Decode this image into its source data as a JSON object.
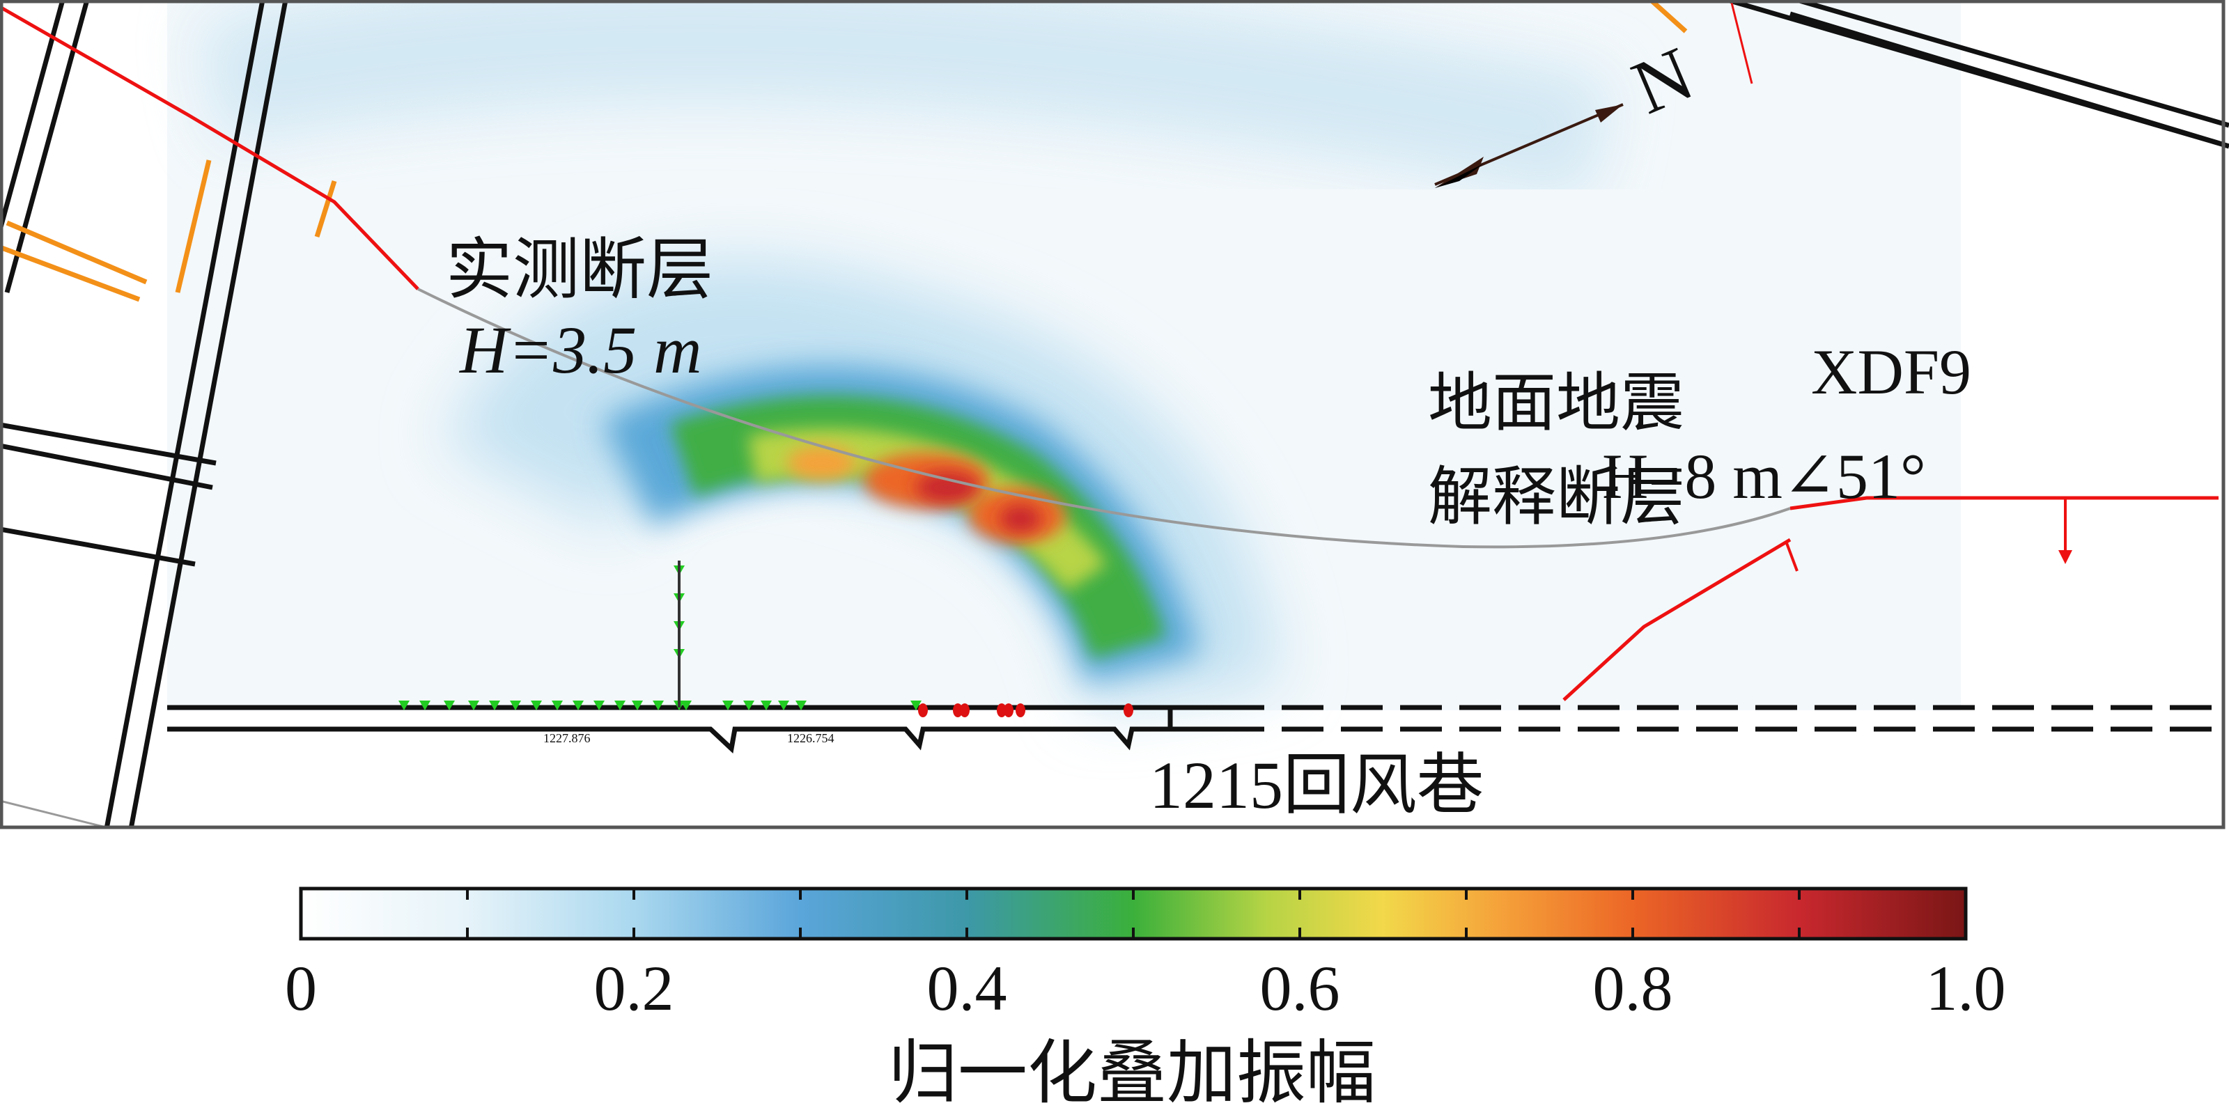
{
  "map": {
    "measured_fault_label": "实测断层",
    "measured_fault_throw": "H=3.5 m",
    "seismic_fault_label_line1": "地面地震",
    "seismic_fault_label_line2": "解释断层",
    "seismic_fault_name": "XDF9",
    "seismic_fault_throw": "H=8 m∠51°",
    "roadway_label": "1215回风巷",
    "north_label": "N",
    "survey_point_1": "1227.876",
    "survey_point_2": "1226.754",
    "colors": {
      "fault": "#ee1111",
      "roadway": "#111111",
      "orange_line": "#f39018",
      "geophone": "#22cc22",
      "source": "#dd1111"
    }
  },
  "colorbar": {
    "title": "归一化叠加振幅",
    "range": [
      0,
      1.0
    ],
    "tick_labels": [
      "0",
      "0.2",
      "0.4",
      "0.6",
      "0.8",
      "1.0"
    ],
    "minor_ticks": [
      0.1,
      0.2,
      0.3,
      0.4,
      0.5,
      0.6,
      0.7,
      0.8,
      0.9
    ],
    "stops": [
      {
        "v": 0,
        "c": "#ffffff"
      },
      {
        "v": 0.1,
        "c": "#e6f3f9"
      },
      {
        "v": 0.2,
        "c": "#aad8ef"
      },
      {
        "v": 0.3,
        "c": "#5aa5da"
      },
      {
        "v": 0.4,
        "c": "#3d98a8"
      },
      {
        "v": 0.5,
        "c": "#3bb03b"
      },
      {
        "v": 0.58,
        "c": "#b6d445"
      },
      {
        "v": 0.65,
        "c": "#f2d84a"
      },
      {
        "v": 0.72,
        "c": "#f5a23a"
      },
      {
        "v": 0.8,
        "c": "#ec6626"
      },
      {
        "v": 0.9,
        "c": "#c8282e"
      },
      {
        "v": 1.0,
        "c": "#7a1616"
      }
    ]
  }
}
